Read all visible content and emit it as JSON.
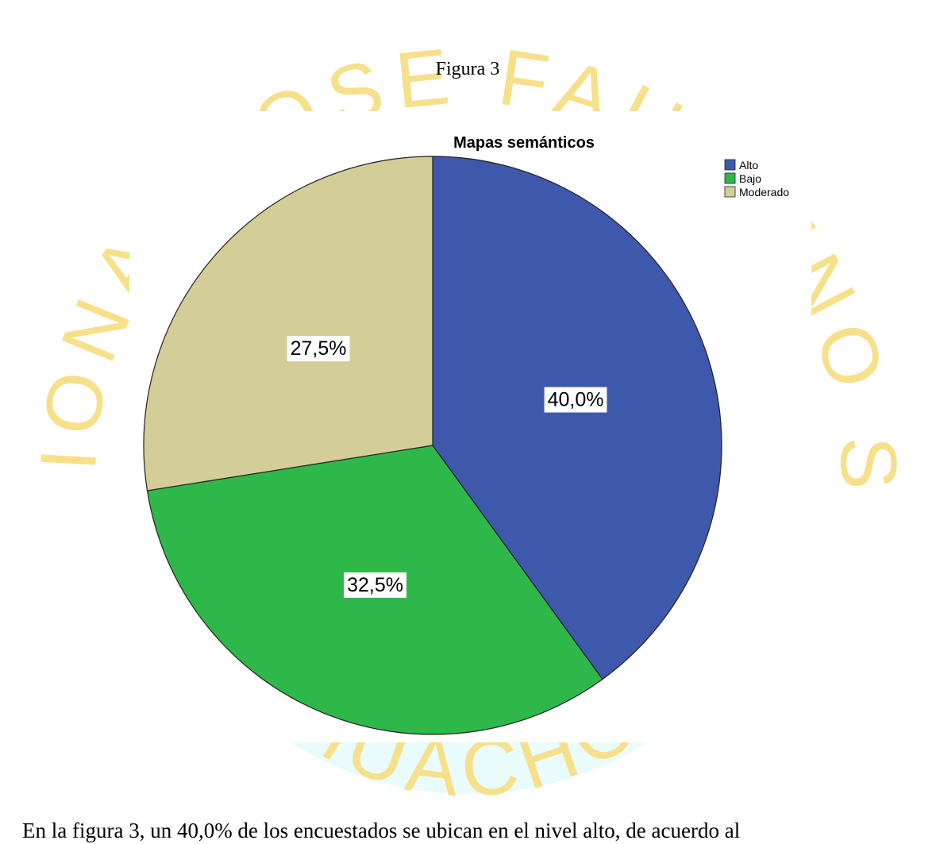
{
  "caption": "Figura 3",
  "watermark": {
    "top": "UNIVERSIDAD NACIONAL JOSE FAUSTINO SANCHEZ CARRION",
    "bottom": "• HUACHO •"
  },
  "chart_data": {
    "type": "pie",
    "title": "Mapas semánticos",
    "categories": [
      "Alto",
      "Bajo",
      "Moderado"
    ],
    "values": [
      40.0,
      32.5,
      27.5
    ],
    "value_labels": [
      "40,0%",
      "32,5%",
      "27,5%"
    ],
    "colors": [
      "#3e58ac",
      "#2fb84a",
      "#d3ce97"
    ],
    "legend": "top-right"
  },
  "body_text": "En la figura 3, un 40,0% de los encuestados se ubican en el nivel alto, de acuerdo al"
}
